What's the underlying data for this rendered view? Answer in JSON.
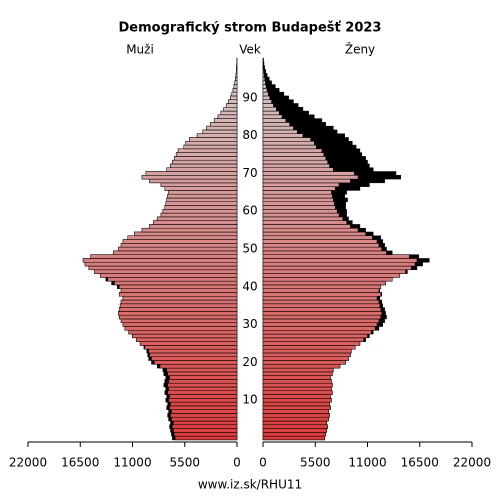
{
  "chart_data": {
    "type": "pyramid",
    "title": "Demografický strom Budapešť 2023",
    "left_label": "Muži",
    "center_label": "Vek",
    "right_label": "Ženy",
    "footer": "www.iz.sk/RHU11",
    "categories": [
      0,
      1,
      2,
      3,
      4,
      5,
      6,
      7,
      8,
      9,
      10,
      11,
      12,
      13,
      14,
      15,
      16,
      17,
      18,
      19,
      20,
      21,
      22,
      23,
      24,
      25,
      26,
      27,
      28,
      29,
      30,
      31,
      32,
      33,
      34,
      35,
      36,
      37,
      38,
      39,
      40,
      41,
      42,
      43,
      44,
      45,
      46,
      47,
      48,
      49,
      50,
      51,
      52,
      53,
      54,
      55,
      56,
      57,
      58,
      59,
      60,
      61,
      62,
      63,
      64,
      65,
      66,
      67,
      68,
      69,
      70,
      71,
      72,
      73,
      74,
      75,
      76,
      77,
      78,
      79,
      80,
      81,
      82,
      83,
      84,
      85,
      86,
      87,
      88,
      89,
      90,
      91,
      92,
      93,
      94,
      95,
      96,
      97,
      98,
      99,
      100
    ],
    "series": [
      {
        "name": "Muži",
        "color": "#dc3c3c",
        "values": [
          6800,
          6900,
          7000,
          7100,
          7000,
          7200,
          7300,
          7200,
          7400,
          7300,
          7500,
          7400,
          7600,
          7500,
          7700,
          7600,
          7500,
          7700,
          7800,
          8400,
          9000,
          9300,
          9400,
          9500,
          9800,
          10200,
          10600,
          11000,
          11400,
          11800,
          12000,
          12200,
          12400,
          12500,
          12400,
          12300,
          12200,
          12000,
          12400,
          12200,
          12600,
          13200,
          13800,
          14400,
          15000,
          15600,
          16000,
          16200,
          15400,
          13000,
          12500,
          12200,
          12000,
          11500,
          10800,
          10000,
          9200,
          8800,
          8400,
          8000,
          7800,
          7600,
          7500,
          7400,
          7300,
          7200,
          7600,
          8000,
          9200,
          10000,
          9600,
          7400,
          7000,
          6800,
          6600,
          6400,
          6200,
          5600,
          5400,
          5000,
          4200,
          3600,
          3200,
          2800,
          2400,
          2000,
          1700,
          1400,
          1100,
          900,
          700,
          550,
          420,
          320,
          240,
          170,
          120,
          80,
          50,
          30,
          20
        ]
      },
      {
        "name": "Ženy",
        "color": "#dc3c3c",
        "values": [
          6500,
          6600,
          6700,
          6800,
          6700,
          6900,
          7000,
          6900,
          7100,
          7000,
          7200,
          7100,
          7300,
          7200,
          7300,
          7200,
          7100,
          7300,
          7400,
          8100,
          8700,
          9000,
          9200,
          9300,
          9700,
          10200,
          10800,
          11200,
          11600,
          12200,
          12600,
          12800,
          13000,
          12900,
          12800,
          12600,
          12500,
          12300,
          12500,
          12300,
          12400,
          12900,
          13600,
          14400,
          15200,
          16200,
          16800,
          17500,
          16400,
          13600,
          13000,
          12800,
          12600,
          12400,
          11600,
          10800,
          10200,
          9400,
          9000,
          8800,
          8800,
          8700,
          8700,
          8900,
          8600,
          8800,
          10200,
          11200,
          12800,
          14500,
          14000,
          11600,
          11200,
          11000,
          10800,
          10400,
          10200,
          9800,
          9400,
          9000,
          8600,
          7800,
          7400,
          6600,
          6200,
          5400,
          4800,
          4200,
          3700,
          3200,
          2700,
          2200,
          1700,
          1300,
          900,
          650,
          430,
          280,
          170,
          100,
          60
        ]
      }
    ],
    "old_color": "#d4cccc",
    "excess_color": "#000000",
    "xlim": [
      0,
      22000
    ],
    "xticks": [
      0,
      5500,
      11000,
      16500,
      22000
    ],
    "yticks": [
      10,
      20,
      30,
      40,
      50,
      60,
      70,
      80,
      90
    ]
  }
}
